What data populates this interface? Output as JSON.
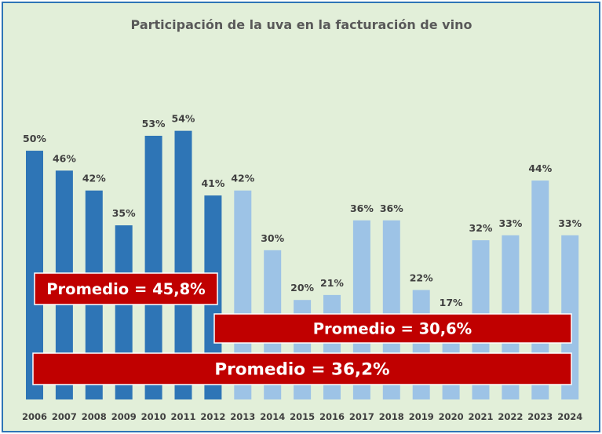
{
  "chart_data": {
    "type": "bar",
    "title": "Participación de la uva en la facturación de vino",
    "categories": [
      "2006",
      "2007",
      "2008",
      "2009",
      "2010",
      "2011",
      "2012",
      "2013",
      "2014",
      "2015",
      "2016",
      "2017",
      "2018",
      "2019",
      "2020",
      "2021",
      "2022",
      "2023",
      "2024"
    ],
    "values": [
      50,
      46,
      42,
      35,
      53,
      54,
      41,
      42,
      30,
      20,
      21,
      36,
      36,
      22,
      17,
      32,
      33,
      44,
      33
    ],
    "value_labels": [
      "50%",
      "46%",
      "42%",
      "35%",
      "53%",
      "54%",
      "41%",
      "42%",
      "30%",
      "20%",
      "21%",
      "36%",
      "36%",
      "22%",
      "17%",
      "32%",
      "33%",
      "44%",
      "33%"
    ],
    "ylim": [
      0,
      60
    ],
    "xlabel": "",
    "ylabel": "",
    "grid": false,
    "series_colors": {
      "2006-2012": "#2e75b6",
      "2013-2024": "#9dc3e6"
    },
    "annotations": [
      {
        "label": "Promedio = 45,8%",
        "period": "2006-2012",
        "value": 45.8
      },
      {
        "label": "Promedio = 30,6%",
        "period": "2013-2024",
        "value": 30.6
      },
      {
        "label": "Promedio = 36,2%",
        "period": "2006-2024",
        "value": 36.2
      }
    ]
  },
  "colors": {
    "background": "#e2efd9",
    "border": "#2e75b6",
    "dark_bar": "#2e75b6",
    "light_bar": "#9dc3e6",
    "annotation_fill": "#c00000"
  }
}
